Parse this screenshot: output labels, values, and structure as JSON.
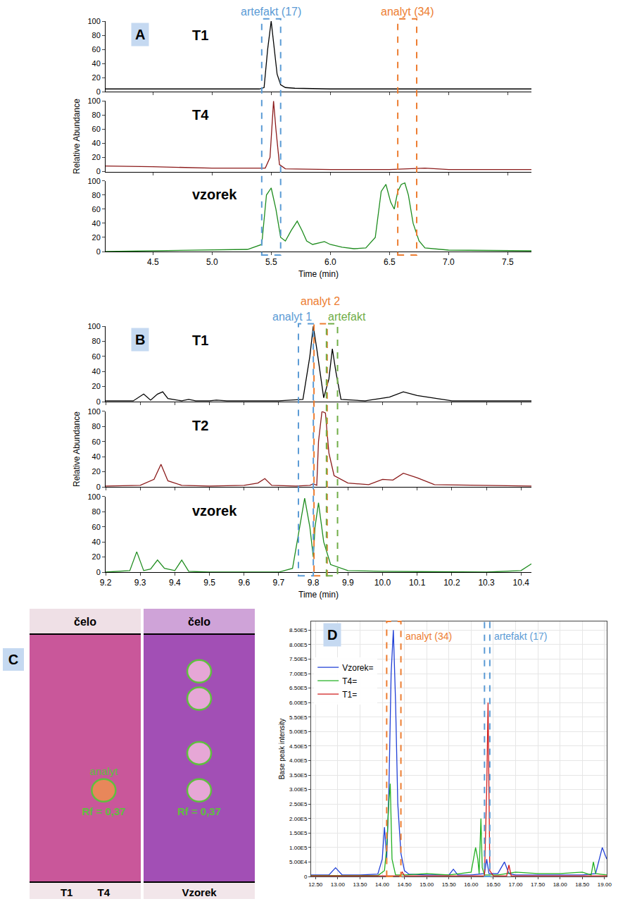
{
  "chart_data": [
    {
      "type": "multipanel",
      "title": "A",
      "xlabel": "Time (min)",
      "ylabel": "Relative Abundance",
      "xlim": [
        4.1,
        7.7
      ],
      "xticks": [
        4.5,
        {
          "value": 5,
          "label": "5.0"
        },
        5.5,
        {
          "value": 6,
          "label": "6.0"
        },
        6.5,
        {
          "value": 7,
          "label": "7.0"
        },
        7.5
      ],
      "ylim": [
        0,
        100
      ],
      "yticks": [
        0,
        20,
        40,
        60,
        80,
        100
      ],
      "series": [
        {
          "name": "T1",
          "color": "#000000",
          "x": [
            4.1,
            5.0,
            5.4,
            5.44,
            5.47,
            5.5,
            5.52,
            5.55,
            5.58,
            5.62,
            5.7,
            6.0,
            6.5,
            7.0,
            7.7
          ],
          "values": [
            4,
            4,
            4,
            6,
            60,
            100,
            70,
            25,
            10,
            6,
            5,
            4,
            4,
            4,
            4
          ]
        },
        {
          "name": "T4",
          "color": "#8b1a1a",
          "x": [
            4.1,
            4.5,
            5.0,
            5.45,
            5.49,
            5.52,
            5.54,
            5.57,
            5.62,
            6.0,
            6.5,
            6.8,
            7.0,
            7.7
          ],
          "values": [
            8,
            7,
            5,
            5,
            20,
            100,
            60,
            10,
            4,
            3,
            3,
            5,
            3,
            3
          ]
        },
        {
          "name": "vzorek",
          "color": "#1e8c1e",
          "x": [
            4.1,
            4.5,
            5.0,
            5.3,
            5.42,
            5.46,
            5.5,
            5.54,
            5.58,
            5.62,
            5.67,
            5.72,
            5.76,
            5.8,
            5.85,
            5.9,
            5.95,
            6.0,
            6.1,
            6.2,
            6.3,
            6.38,
            6.43,
            6.47,
            6.51,
            6.54,
            6.57,
            6.6,
            6.63,
            6.66,
            6.7,
            6.75,
            6.8,
            7.0,
            7.7
          ],
          "values": [
            0,
            1,
            2,
            3,
            10,
            80,
            90,
            60,
            20,
            15,
            30,
            43,
            30,
            15,
            10,
            12,
            14,
            10,
            6,
            4,
            5,
            20,
            85,
            95,
            70,
            60,
            85,
            95,
            97,
            80,
            40,
            15,
            5,
            2,
            1
          ]
        }
      ],
      "highlights": [
        {
          "label": "artefakt (17)",
          "color": "#5b9bd5",
          "x0": 5.42,
          "x1": 5.58
        },
        {
          "label": "analyt (34)",
          "color": "#ed7d31",
          "x0": 6.57,
          "x1": 6.73
        }
      ]
    },
    {
      "type": "multipanel",
      "title": "B",
      "xlabel": "Time (min)",
      "ylabel": "Relative Abundance",
      "xlim": [
        9.2,
        10.43
      ],
      "xticks": [
        9.2,
        9.3,
        9.4,
        9.5,
        9.6,
        9.7,
        9.8,
        9.9,
        {
          "value": 10,
          "label": "10.0"
        },
        10.1,
        10.2,
        10.3,
        10.4
      ],
      "ylim": [
        0,
        100
      ],
      "yticks": [
        0,
        20,
        40,
        60,
        80,
        100
      ],
      "series": [
        {
          "name": "T1",
          "color": "#000000",
          "x": [
            9.2,
            9.28,
            9.31,
            9.33,
            9.35,
            9.365,
            9.38,
            9.42,
            9.44,
            9.46,
            9.5,
            9.52,
            9.55,
            9.7,
            9.77,
            9.79,
            9.8,
            9.81,
            9.83,
            9.845,
            9.855,
            9.865,
            9.88,
            9.95,
            10.02,
            10.06,
            10.1,
            10.2,
            10.43
          ],
          "values": [
            1,
            1,
            10,
            2,
            10,
            13,
            4,
            1,
            3,
            1,
            1,
            2,
            1,
            1,
            3,
            60,
            100,
            70,
            5,
            30,
            70,
            40,
            3,
            1,
            6,
            13,
            8,
            1,
            1
          ]
        },
        {
          "name": "T2",
          "color": "#8b1a1a",
          "x": [
            9.2,
            9.3,
            9.34,
            9.36,
            9.38,
            9.42,
            9.5,
            9.6,
            9.64,
            9.66,
            9.68,
            9.75,
            9.79,
            9.8,
            9.81,
            9.815,
            9.825,
            9.835,
            9.845,
            9.86,
            9.9,
            9.96,
            10.0,
            10.03,
            10.06,
            10.1,
            10.15,
            10.43
          ],
          "values": [
            1,
            2,
            10,
            30,
            8,
            2,
            1,
            2,
            5,
            11,
            2,
            1,
            2,
            4,
            2,
            60,
            100,
            98,
            45,
            15,
            5,
            3,
            10,
            9,
            18,
            12,
            3,
            1
          ]
        },
        {
          "name": "vzorek",
          "color": "#1e8c1e",
          "x": [
            9.2,
            9.27,
            9.29,
            9.31,
            9.33,
            9.35,
            9.37,
            9.4,
            9.42,
            9.44,
            9.5,
            9.7,
            9.74,
            9.76,
            9.775,
            9.79,
            9.8,
            9.805,
            9.815,
            9.83,
            9.85,
            9.9,
            10.0,
            10.3,
            10.4,
            10.43
          ],
          "values": [
            0,
            2,
            27,
            2,
            4,
            16,
            5,
            2,
            16,
            1,
            0,
            0,
            5,
            60,
            98,
            60,
            20,
            60,
            92,
            40,
            10,
            2,
            1,
            0,
            2,
            11
          ]
        }
      ],
      "highlights": [
        {
          "label": "analyt 1",
          "color": "#5b9bd5",
          "x0": 9.757,
          "x1": 9.8
        },
        {
          "label": "analyt 2",
          "color": "#ed7d31",
          "x0": 9.802,
          "x1": 9.84
        },
        {
          "label": "artefakt",
          "color": "#70ad47",
          "x0": 9.838,
          "x1": 9.87
        }
      ]
    },
    {
      "type": "tlc",
      "title": "C",
      "plates": [
        {
          "top_label": "čelo",
          "lanes": [
            "T1",
            "T4"
          ],
          "spots": [
            {
              "rf": 0.37,
              "label": "analyt",
              "rf_label": "Rf = 0,37"
            }
          ]
        },
        {
          "top_label": "čelo",
          "lanes": [
            "Vzorek"
          ],
          "spots": [
            {
              "rf": 0.37,
              "rf_label": "Rf = 0,37"
            },
            {
              "rf": 0.52
            },
            {
              "rf": 0.74
            },
            {
              "rf": 0.85
            }
          ]
        }
      ]
    },
    {
      "type": "line",
      "title": "D",
      "ylabel": "Base peak intensity",
      "grid": true,
      "legend": "upper left",
      "xlim": [
        12.4,
        19.05
      ],
      "xticks": [
        {
          "value": 12.5,
          "label": "12.50"
        },
        {
          "value": 13,
          "label": "13.00"
        },
        {
          "value": 13.5,
          "label": "13.50"
        },
        {
          "value": 14,
          "label": "14.00"
        },
        {
          "value": 14.5,
          "label": "14.50"
        },
        {
          "value": 15,
          "label": "15.00"
        },
        {
          "value": 15.5,
          "label": "15.50"
        },
        {
          "value": 16,
          "label": "16.00"
        },
        {
          "value": 16.5,
          "label": "16.50"
        },
        {
          "value": 17,
          "label": "17.00"
        },
        {
          "value": 17.5,
          "label": "17.50"
        },
        {
          "value": 18,
          "label": "18.00"
        },
        {
          "value": 18.5,
          "label": "18.50"
        },
        {
          "value": 19,
          "label": "19.00"
        }
      ],
      "ylim": [
        0,
        880000
      ],
      "yticks": [
        0,
        {
          "value": 50000,
          "label": "5.00E4"
        },
        {
          "value": 100000,
          "label": "1.00E5"
        },
        {
          "value": 150000,
          "label": "1.50E5"
        },
        {
          "value": 200000,
          "label": "2.00E5"
        },
        {
          "value": 250000,
          "label": "2.50E5"
        },
        {
          "value": 300000,
          "label": "3.00E5"
        },
        {
          "value": 350000,
          "label": "3.50E5"
        },
        {
          "value": 400000,
          "label": "4.00E5"
        },
        {
          "value": 450000,
          "label": "4.50E5"
        },
        {
          "value": 500000,
          "label": "5.00E5"
        },
        {
          "value": 550000,
          "label": "5.50E5"
        },
        {
          "value": 600000,
          "label": "6.00E5"
        },
        {
          "value": 650000,
          "label": "6.50E5"
        },
        {
          "value": 700000,
          "label": "7.00E5"
        },
        {
          "value": 750000,
          "label": "7.50E5"
        },
        {
          "value": 800000,
          "label": "8.00E5"
        },
        {
          "value": 850000,
          "label": "8.50E5"
        }
      ],
      "series": [
        {
          "name": "Vzorek=",
          "color": "#1f3fd6",
          "x": [
            12.4,
            12.8,
            12.95,
            13.1,
            13.5,
            13.9,
            14.0,
            14.05,
            14.1,
            14.15,
            14.2,
            14.25,
            14.3,
            14.35,
            14.42,
            14.5,
            14.6,
            15.0,
            15.5,
            15.6,
            15.7,
            16.0,
            16.3,
            16.35,
            16.4,
            16.6,
            16.75,
            16.85,
            17.0,
            17.5,
            18.0,
            18.5,
            18.8,
            18.95,
            19.05
          ],
          "values": [
            5000,
            5000,
            30000,
            5000,
            5000,
            8000,
            60000,
            170000,
            60000,
            300000,
            700000,
            850000,
            600000,
            250000,
            80000,
            20000,
            8000,
            5000,
            5000,
            25000,
            5000,
            5000,
            10000,
            60000,
            10000,
            10000,
            50000,
            10000,
            5000,
            5000,
            5000,
            5000,
            10000,
            100000,
            60000
          ]
        },
        {
          "name": "T4=",
          "color": "#22b022",
          "x": [
            12.4,
            13.9,
            14.05,
            14.1,
            14.15,
            14.18,
            14.22,
            14.3,
            14.5,
            15.0,
            15.5,
            16.0,
            16.1,
            16.15,
            16.18,
            16.22,
            16.25,
            16.3,
            16.6,
            17.0,
            17.5,
            18.0,
            18.5,
            18.7,
            18.75,
            18.8,
            19.05
          ],
          "values": [
            3000,
            3000,
            20000,
            100000,
            260000,
            320000,
            60000,
            5000,
            5000,
            10000,
            5000,
            15000,
            100000,
            60000,
            10000,
            200000,
            30000,
            5000,
            5000,
            15000,
            10000,
            10000,
            15000,
            5000,
            50000,
            10000,
            5000
          ]
        },
        {
          "name": "T1=",
          "color": "#d01c1c",
          "x": [
            12.4,
            14.0,
            14.4,
            14.45,
            14.5,
            15.0,
            16.0,
            16.3,
            16.35,
            16.38,
            16.42,
            16.5,
            16.8,
            16.85,
            16.9,
            17.5,
            18.0,
            19.05
          ],
          "values": [
            2000,
            2000,
            2000,
            15000,
            2000,
            2000,
            2000,
            2000,
            300000,
            600000,
            20000,
            2000,
            2000,
            40000,
            2000,
            2000,
            2000,
            2000
          ]
        }
      ],
      "highlights": [
        {
          "label": "analyt (34)",
          "color": "#ed7d31",
          "x0": 14.1,
          "x1": 14.42
        },
        {
          "label": "artefakt (17)",
          "color": "#5b9bd5",
          "x0": 16.3,
          "x1": 16.42
        }
      ]
    }
  ]
}
